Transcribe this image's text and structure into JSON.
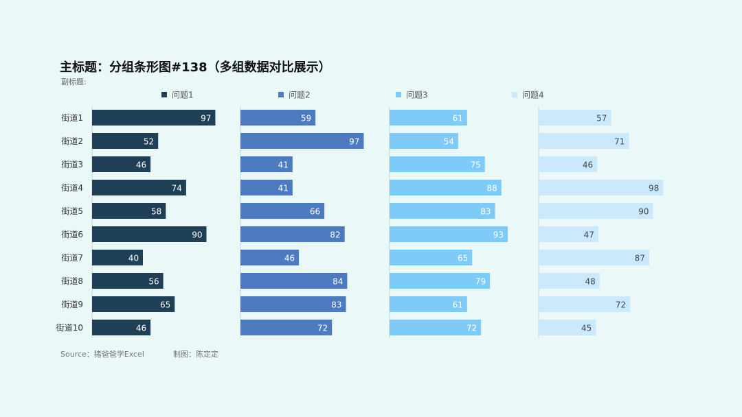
{
  "title": "主标题：分组条形图#138（多组数据对比展示）",
  "subtitle": "副标题:",
  "footer": {
    "source": "Source：猪爸爸学Excel",
    "author": "制图：陈定定"
  },
  "colors": {
    "background": "#eaf8f8",
    "series": [
      "#1e3f55",
      "#4c7bbf",
      "#7fcbf8",
      "#cbe9fb"
    ],
    "label_light": "#ffffff",
    "label_dark": "#3a4a55",
    "axis": "#c6d3d6"
  },
  "chart_data": {
    "type": "bar",
    "orientation": "horizontal",
    "layout": "small-multiples",
    "legend_position": "top",
    "grid": false,
    "categories": [
      "街道1",
      "街道2",
      "街道3",
      "街道4",
      "街道5",
      "街道6",
      "街道7",
      "街道8",
      "街道9",
      "街道10"
    ],
    "series": [
      {
        "name": "问题1",
        "values": [
          97,
          52,
          46,
          74,
          58,
          90,
          40,
          56,
          65,
          46
        ]
      },
      {
        "name": "问题2",
        "values": [
          59,
          97,
          41,
          41,
          66,
          82,
          46,
          84,
          83,
          72
        ]
      },
      {
        "name": "问题3",
        "values": [
          61,
          54,
          75,
          88,
          83,
          93,
          65,
          79,
          61,
          72
        ]
      },
      {
        "name": "问题4",
        "values": [
          57,
          71,
          46,
          98,
          90,
          47,
          87,
          48,
          72,
          45
        ]
      }
    ],
    "xlim": [
      0,
      100
    ]
  }
}
